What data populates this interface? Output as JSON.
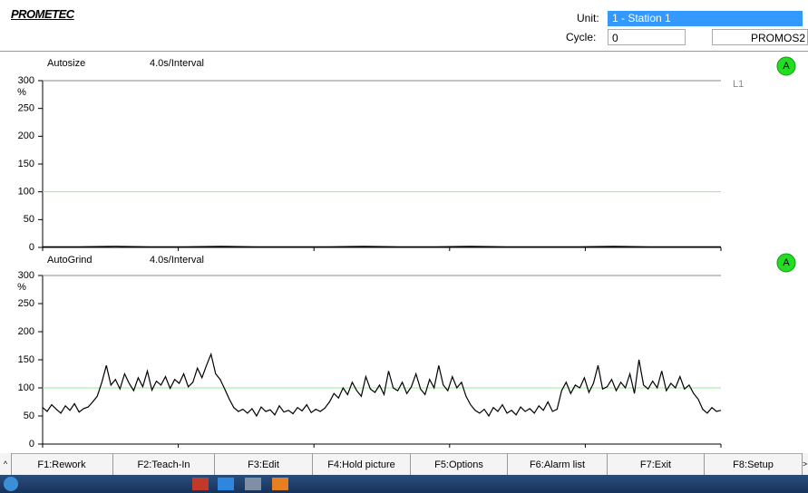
{
  "header": {
    "logo": "PROMETEC",
    "unit_label": "Unit:",
    "unit_value": "1 - Station 1",
    "cycle_label": "Cycle:",
    "cycle_value": "0",
    "system": "PROMOS2"
  },
  "chart_data": [
    {
      "type": "line",
      "title": "Autosize",
      "interval": "4.0s/Interval",
      "y_label": "%",
      "status": "A",
      "reference_label": "L1",
      "limit": 100,
      "limit_color": "#90ee90",
      "color": "#000000",
      "status_color": "#22dd22",
      "ylim": [
        0,
        300
      ],
      "yticks": [
        0,
        50,
        100,
        150,
        200,
        250,
        300
      ],
      "values": [
        1,
        1,
        2,
        1,
        1,
        2,
        1,
        1,
        1,
        2,
        1,
        1,
        2,
        1,
        1,
        1,
        2,
        1,
        1,
        1
      ]
    },
    {
      "type": "line",
      "title": "AutoGrind",
      "interval": "4.0s/Interval",
      "y_label": "%",
      "status": "A",
      "limit": 100,
      "limit_color": "#90ee90",
      "color": "#000000",
      "status_color": "#22dd22",
      "ylim": [
        0,
        300
      ],
      "yticks": [
        0,
        50,
        100,
        150,
        200,
        250,
        300
      ],
      "values": [
        65,
        58,
        70,
        62,
        55,
        68,
        60,
        72,
        57,
        63,
        66,
        75,
        85,
        110,
        140,
        105,
        115,
        98,
        125,
        108,
        95,
        118,
        102,
        130,
        96,
        112,
        105,
        120,
        99,
        115,
        108,
        125,
        102,
        110,
        135,
        118,
        140,
        160,
        125,
        115,
        98,
        80,
        65,
        58,
        62,
        55,
        63,
        50,
        66,
        58,
        61,
        52,
        68,
        57,
        60,
        54,
        65,
        59,
        70,
        56,
        62,
        58,
        64,
        75,
        90,
        82,
        100,
        88,
        110,
        95,
        85,
        120,
        98,
        92,
        105,
        88,
        130,
        100,
        95,
        110,
        90,
        102,
        125,
        98,
        88,
        115,
        100,
        140,
        105,
        95,
        120,
        100,
        110,
        85,
        70,
        60,
        55,
        62,
        50,
        65,
        58,
        70,
        55,
        60,
        52,
        66,
        58,
        63,
        55,
        68,
        60,
        75,
        58,
        62,
        95,
        110,
        90,
        105,
        100,
        118,
        92,
        108,
        140,
        98,
        102,
        115,
        95,
        110,
        100,
        125,
        90,
        150,
        105,
        98,
        112,
        100,
        130,
        95,
        108,
        100,
        120,
        98,
        105,
        90,
        80,
        62,
        55,
        65,
        58,
        60
      ]
    }
  ],
  "function_keys": [
    "F1:Rework",
    "F2:Teach-In",
    "F3:Edit",
    "F4:Hold picture",
    "F5:Options",
    "F6:Alarm list",
    "F7:Exit",
    "F8:Setup"
  ]
}
